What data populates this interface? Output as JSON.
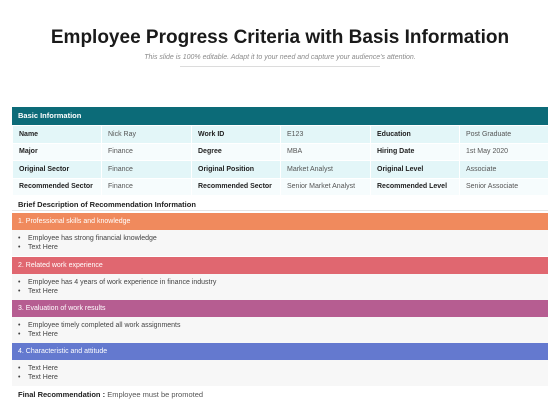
{
  "header": {
    "title": "Employee Progress Criteria with Basis Information",
    "subtitle": "This slide is 100% editable. Adapt it to your need and capture your audience's attention."
  },
  "basic_info": {
    "heading": "Basic Information",
    "rows": [
      [
        {
          "label": "Name",
          "value": "Nick Ray"
        },
        {
          "label": "Work ID",
          "value": "E123"
        },
        {
          "label": "Education",
          "value": "Post Graduate"
        }
      ],
      [
        {
          "label": "Major",
          "value": "Finance"
        },
        {
          "label": "Degree",
          "value": "MBA"
        },
        {
          "label": "Hiring Date",
          "value": "1st May 2020"
        }
      ],
      [
        {
          "label": "Original Sector",
          "value": "Finance"
        },
        {
          "label": "Original Position",
          "value": "Market Analyst"
        },
        {
          "label": "Original Level",
          "value": "Associate"
        }
      ],
      [
        {
          "label": "Recommended Sector",
          "value": "Finance"
        },
        {
          "label": "Recommended Sector",
          "value": "Senior Market Analyst"
        },
        {
          "label": "Recommended Level",
          "value": "Senior Associate"
        }
      ]
    ]
  },
  "brief": {
    "title": "Brief Description of Recommendation Information",
    "sections": [
      {
        "title": "1.  Professional skills and knowledge",
        "color": "#f08a5d",
        "bullets": [
          "Employee has strong financial knowledge",
          "Text Here"
        ]
      },
      {
        "title": "2.  Related work experience",
        "color": "#e06770",
        "bullets": [
          "Employee has 4 years of work experience in finance industry",
          "Text Here"
        ]
      },
      {
        "title": "3.  Evaluation of work results",
        "color": "#b65d91",
        "bullets": [
          "Employee timely completed all work assignments",
          "Text Here"
        ]
      },
      {
        "title": "4.  Characteristic and attitude",
        "color": "#6479cf",
        "bullets": [
          "Text Here",
          "Text Here"
        ]
      }
    ]
  },
  "final": {
    "label": "Final Recommendation :",
    "value": "Employee must be promoted"
  }
}
